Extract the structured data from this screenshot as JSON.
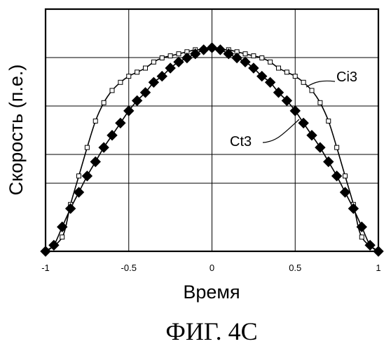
{
  "chart_data": {
    "type": "scatter",
    "xlabel": "Время",
    "ylabel": "Скорость (п.е.)",
    "caption": "ФИГ. 4C",
    "xlim": [
      -1,
      1
    ],
    "ylim": [
      0,
      1
    ],
    "xticks": [
      "-1",
      "-0.5",
      "0",
      "0.5",
      "1"
    ],
    "grid": true,
    "series": [
      {
        "name": "Ci3",
        "marker": "open-square",
        "x": [
          -0.9,
          -0.85,
          -0.8,
          -0.75,
          -0.7,
          -0.65,
          -0.6,
          -0.55,
          -0.5,
          -0.45,
          -0.4,
          -0.35,
          -0.3,
          -0.25,
          -0.2,
          -0.15,
          -0.1,
          -0.05,
          0,
          0.05,
          0.1,
          0.15,
          0.2,
          0.25,
          0.3,
          0.35,
          0.4,
          0.45,
          0.5,
          0.55,
          0.6,
          0.65,
          0.7,
          0.75,
          0.8,
          0.85,
          0.9
        ],
        "y": [
          0.07,
          0.23,
          0.37,
          0.51,
          0.64,
          0.73,
          0.79,
          0.83,
          0.86,
          0.88,
          0.9,
          0.93,
          0.95,
          0.96,
          0.97,
          0.98,
          0.99,
          0.99,
          1.0,
          0.99,
          0.99,
          0.98,
          0.97,
          0.96,
          0.95,
          0.93,
          0.9,
          0.88,
          0.86,
          0.83,
          0.79,
          0.73,
          0.64,
          0.51,
          0.37,
          0.23,
          0.07
        ]
      },
      {
        "name": "Ct3",
        "marker": "filled-diamond",
        "x": [
          -1,
          -0.95,
          -0.9,
          -0.85,
          -0.8,
          -0.75,
          -0.7,
          -0.65,
          -0.6,
          -0.55,
          -0.5,
          -0.45,
          -0.4,
          -0.35,
          -0.3,
          -0.25,
          -0.2,
          -0.15,
          -0.1,
          -0.05,
          0,
          0.05,
          0.1,
          0.15,
          0.2,
          0.25,
          0.3,
          0.35,
          0.4,
          0.45,
          0.5,
          0.55,
          0.6,
          0.65,
          0.7,
          0.75,
          0.8,
          0.85,
          0.9,
          0.95,
          1
        ],
        "y": [
          0,
          0.03,
          0.12,
          0.21,
          0.29,
          0.37,
          0.44,
          0.51,
          0.57,
          0.63,
          0.69,
          0.74,
          0.78,
          0.83,
          0.86,
          0.9,
          0.93,
          0.95,
          0.97,
          0.99,
          1.0,
          0.99,
          0.97,
          0.95,
          0.93,
          0.9,
          0.86,
          0.83,
          0.78,
          0.74,
          0.69,
          0.63,
          0.57,
          0.51,
          0.44,
          0.37,
          0.29,
          0.21,
          0.12,
          0.03,
          0
        ]
      }
    ]
  }
}
